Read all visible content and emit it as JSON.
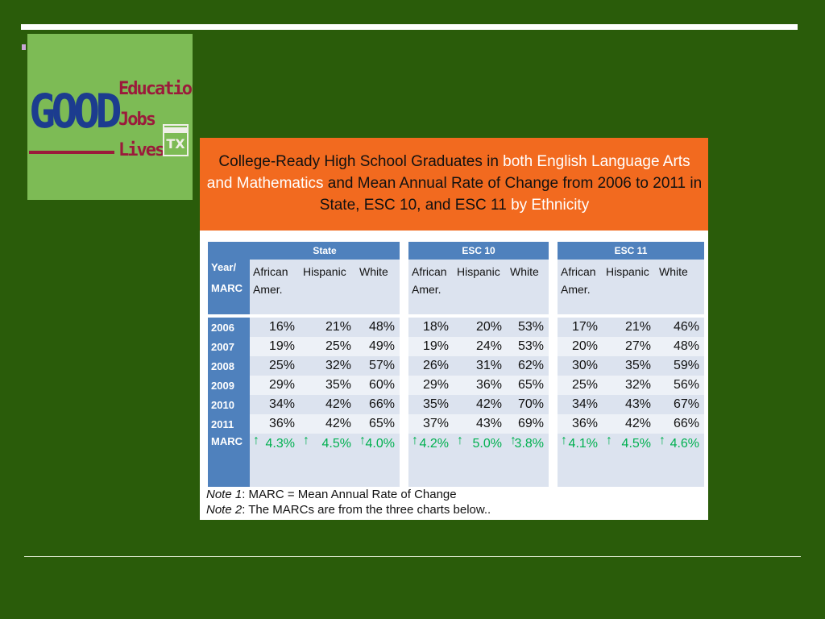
{
  "logo": {
    "main_word": "GOOD",
    "words": [
      "Education",
      "Jobs",
      "Lives"
    ],
    "badge": "TX"
  },
  "figure": {
    "title": {
      "part1": "College-Ready High School Graduates in ",
      "part2": "both English Language Arts and Mathematics",
      "part3": " and Mean Annual Rate of Change from 2006 to 2011 in State, ESC 10, and ESC 11 ",
      "part4": "by Ethnicity"
    },
    "table": {
      "corner_label_1": "Year/",
      "corner_label_2": "MARC",
      "groups": [
        "State",
        "ESC 10",
        "ESC 11"
      ],
      "subheaders": [
        "African Amer.",
        "Hispanic",
        "White",
        "African Amer.",
        "Hispanic",
        "White",
        "African Amer.",
        "Hispanic",
        "White"
      ],
      "rows": [
        {
          "year": "2006",
          "values": [
            "16%",
            "21%",
            "48%",
            "18%",
            "20%",
            "53%",
            "17%",
            "21%",
            "46%"
          ]
        },
        {
          "year": "2007",
          "values": [
            "19%",
            "25%",
            "49%",
            "19%",
            "24%",
            "53%",
            "20%",
            "27%",
            "48%"
          ]
        },
        {
          "year": "2008",
          "values": [
            "25%",
            "32%",
            "57%",
            "26%",
            "31%",
            "62%",
            "30%",
            "35%",
            "59%"
          ]
        },
        {
          "year": "2009",
          "values": [
            "29%",
            "35%",
            "60%",
            "29%",
            "36%",
            "65%",
            "25%",
            "32%",
            "56%"
          ]
        },
        {
          "year": "2010",
          "values": [
            "34%",
            "42%",
            "66%",
            "35%",
            "42%",
            "70%",
            "34%",
            "43%",
            "67%"
          ]
        },
        {
          "year": "2011",
          "values": [
            "36%",
            "42%",
            "65%",
            "37%",
            "43%",
            "69%",
            "36%",
            "42%",
            "66%"
          ]
        }
      ],
      "marc_label": "MARC",
      "marc_values": [
        "4.3%",
        "4.5%",
        "4.0%",
        "4.2%",
        "5.0%",
        "3.8%",
        "4.1%",
        "4.5%",
        "4.6%"
      ],
      "marc_arrow": "↑"
    },
    "notes": {
      "note1_label": "Note 1",
      "note1_text": ": MARC  = Mean Annual Rate of Change",
      "note2_label": "Note 2",
      "note2_text": ": The MARCs are from the three charts below.."
    }
  },
  "colors": {
    "background": "#2a5c0a",
    "header_orange": "#f26a1f",
    "table_blue": "#4f81bd",
    "marc_green": "#00b050"
  }
}
